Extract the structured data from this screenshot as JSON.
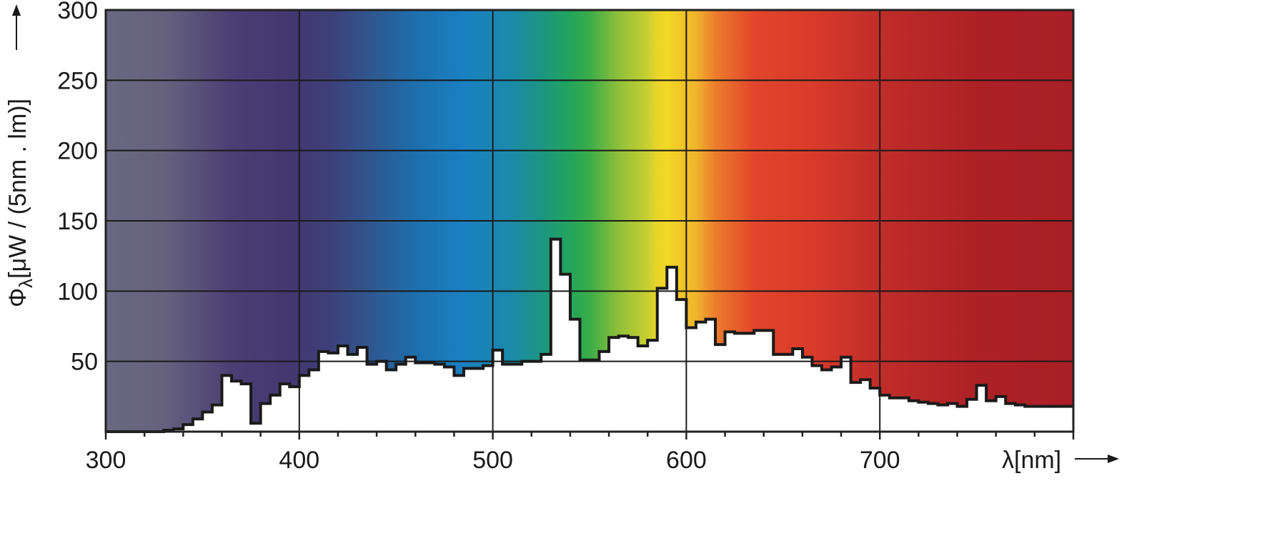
{
  "chart_data": {
    "type": "area",
    "title": "",
    "xlabel": "λ[nm]",
    "ylabel": "Φ",
    "ylabel_sub": "λ",
    "ylabel_rest": "[μW / (5nm . lm)]",
    "xlim": [
      300,
      800
    ],
    "ylim": [
      0,
      300
    ],
    "grid": true,
    "x_ticks": [
      "300",
      "400",
      "500",
      "600",
      "700"
    ],
    "y_ticks": [
      "50",
      "100",
      "150",
      "200",
      "250",
      "300"
    ],
    "background": "visible spectrum color gradient",
    "line_color": "#1a1a1a",
    "below_curve_fill": "#ffffff",
    "step_width_nm": 5,
    "x": [
      300,
      305,
      310,
      315,
      320,
      325,
      330,
      335,
      340,
      345,
      350,
      355,
      360,
      365,
      370,
      375,
      380,
      385,
      390,
      395,
      400,
      405,
      410,
      415,
      420,
      425,
      430,
      435,
      440,
      445,
      450,
      455,
      460,
      465,
      470,
      475,
      480,
      485,
      490,
      495,
      500,
      505,
      510,
      515,
      520,
      525,
      530,
      535,
      540,
      545,
      550,
      555,
      560,
      565,
      570,
      575,
      580,
      585,
      590,
      595,
      600,
      605,
      610,
      615,
      620,
      625,
      630,
      635,
      640,
      645,
      650,
      655,
      660,
      665,
      670,
      675,
      680,
      685,
      690,
      695,
      700,
      705,
      710,
      715,
      720,
      725,
      730,
      735,
      740,
      745,
      750,
      755,
      760,
      765,
      770,
      775,
      780,
      785,
      790,
      795
    ],
    "values": [
      0,
      0,
      0,
      0,
      0,
      0,
      1,
      2,
      5,
      9,
      14,
      19,
      40,
      36,
      34,
      6,
      20,
      26,
      34,
      32,
      40,
      44,
      57,
      56,
      61,
      55,
      60,
      48,
      50,
      44,
      48,
      53,
      49,
      49,
      48,
      46,
      40,
      45,
      45,
      47,
      58,
      48,
      48,
      50,
      50,
      55,
      137,
      112,
      80,
      51,
      51,
      57,
      67,
      68,
      67,
      61,
      65,
      102,
      117,
      94,
      74,
      78,
      80,
      62,
      71,
      70,
      70,
      72,
      72,
      55,
      55,
      59,
      53,
      47,
      44,
      46,
      53,
      35,
      37,
      31,
      26,
      24,
      24,
      22,
      21,
      20,
      19,
      20,
      18,
      23,
      33,
      22,
      25,
      20,
      19,
      18,
      18,
      18,
      18,
      18
    ]
  }
}
